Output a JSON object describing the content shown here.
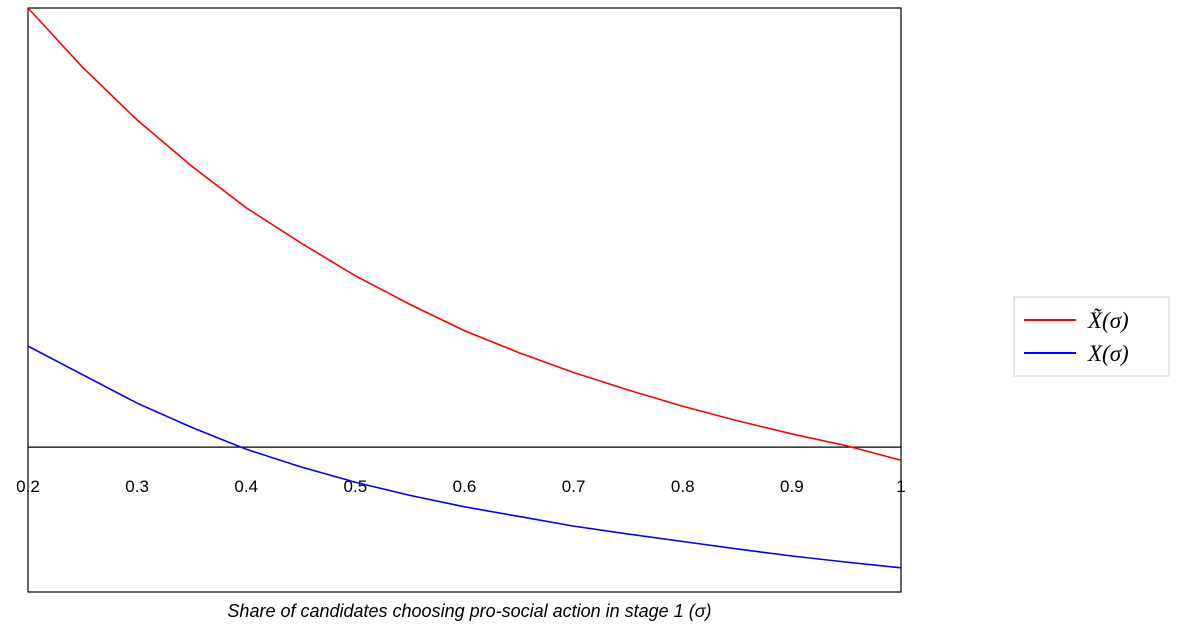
{
  "chart_data": {
    "type": "line",
    "title": "",
    "xlabel": "Share of candidates choosing pro-social action in stage 1 (σ)",
    "ylabel": "",
    "xlim": [
      0.2,
      1.0
    ],
    "ylim": [
      -0.33,
      1.0
    ],
    "grid": false,
    "legend_position": "right",
    "x_ticks": [
      "0.2",
      "0.3",
      "0.4",
      "0.5",
      "0.6",
      "0.7",
      "0.8",
      "0.9",
      "1"
    ],
    "x_tick_values": [
      0.2,
      0.3,
      0.4,
      0.5,
      0.6,
      0.7,
      0.8,
      0.9,
      1.0
    ],
    "series": [
      {
        "name": "X̃(σ)",
        "color": "#ff0000",
        "x": [
          0.2,
          0.25,
          0.3,
          0.35,
          0.4,
          0.45,
          0.5,
          0.55,
          0.6,
          0.65,
          0.7,
          0.75,
          0.8,
          0.85,
          0.9,
          0.95,
          1.0
        ],
        "y": [
          1.0,
          0.865,
          0.745,
          0.64,
          0.545,
          0.465,
          0.39,
          0.325,
          0.265,
          0.215,
          0.17,
          0.13,
          0.093,
          0.06,
          0.03,
          0.003,
          -0.03
        ]
      },
      {
        "name": "X(σ)",
        "color": "#0000ff",
        "x": [
          0.2,
          0.25,
          0.3,
          0.35,
          0.4,
          0.45,
          0.5,
          0.55,
          0.6,
          0.65,
          0.7,
          0.75,
          0.8,
          0.85,
          0.9,
          0.95,
          1.0
        ],
        "y": [
          0.23,
          0.165,
          0.1,
          0.045,
          -0.005,
          -0.045,
          -0.08,
          -0.11,
          -0.136,
          -0.158,
          -0.18,
          -0.198,
          -0.215,
          -0.232,
          -0.248,
          -0.262,
          -0.275
        ]
      }
    ]
  },
  "legend": {
    "entries": [
      {
        "label": "X̃(σ)",
        "color": "#ff0000"
      },
      {
        "label": "X(σ)",
        "color": "#0000ff"
      }
    ]
  }
}
